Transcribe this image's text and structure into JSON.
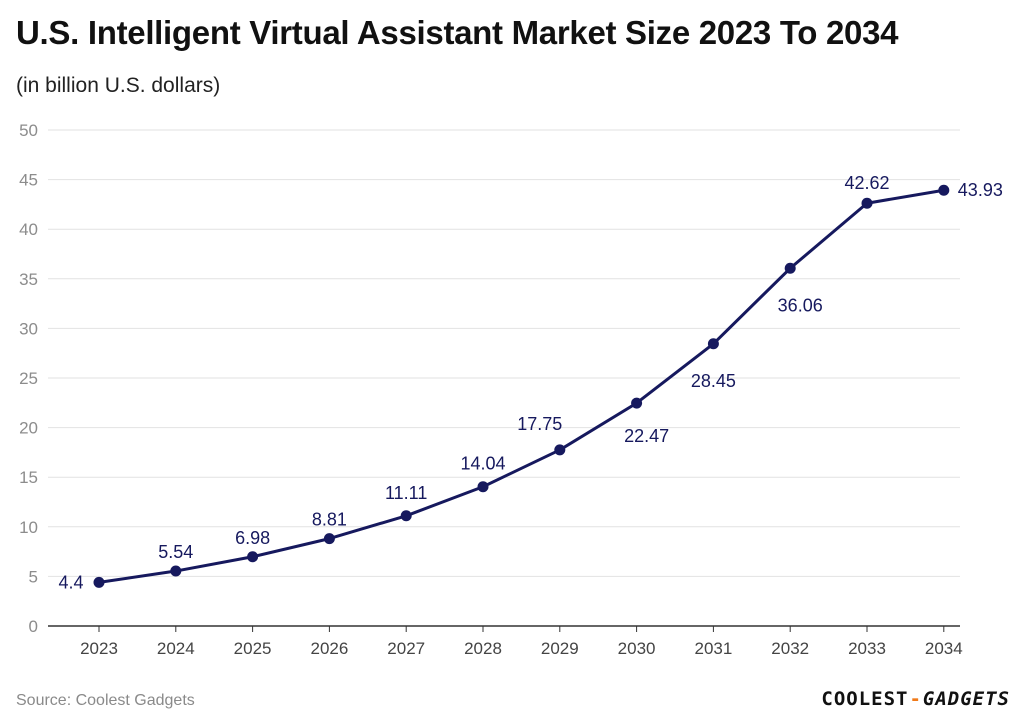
{
  "chart_data": {
    "type": "line",
    "title": "U.S. Intelligent Virtual Assistant Market Size 2023 To 2034",
    "subtitle": "(in billion U.S. dollars)",
    "categories": [
      "2023",
      "2024",
      "2025",
      "2026",
      "2027",
      "2028",
      "2029",
      "2030",
      "2031",
      "2032",
      "2033",
      "2034"
    ],
    "series": [
      {
        "name": "Market Size",
        "values": [
          4.4,
          5.54,
          6.98,
          8.81,
          11.11,
          14.04,
          17.75,
          22.47,
          28.45,
          36.06,
          42.62,
          43.93
        ]
      }
    ],
    "data_labels": [
      "4.4",
      "5.54",
      "6.98",
      "8.81",
      "11.11",
      "14.04",
      "17.75",
      "22.47",
      "28.45",
      "36.06",
      "42.62",
      "43.93"
    ],
    "ylim": [
      0,
      50
    ],
    "yticks": [
      "0",
      "5",
      "10",
      "15",
      "20",
      "25",
      "30",
      "35",
      "40",
      "45",
      "50"
    ],
    "xlabel": "",
    "ylabel": "",
    "grid": true,
    "colors": {
      "line": "#16195e",
      "grid": "#e2e2e2",
      "tick": "#8c8c8c",
      "label": "#16195e"
    }
  },
  "source": "Source: Coolest Gadgets",
  "logo": {
    "part1": "COOLEST",
    "dash": "-",
    "part2": "GADGETS"
  }
}
